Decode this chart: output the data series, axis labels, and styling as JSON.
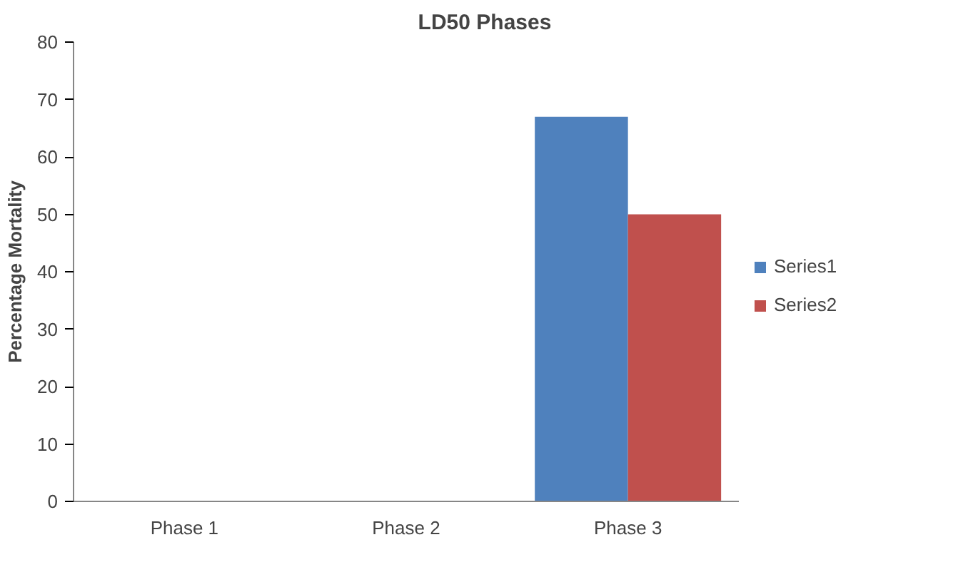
{
  "chart_data": {
    "type": "bar",
    "title": "LD50 Phases",
    "ylabel": "Percentage Mortality",
    "categories": [
      "Phase 1",
      "Phase 2",
      "Phase 3"
    ],
    "series": [
      {
        "name": "Series1",
        "color": "#4f81bd",
        "values": [
          0,
          0,
          67
        ]
      },
      {
        "name": "Series2",
        "color": "#c0504d",
        "values": [
          0,
          0,
          50
        ]
      }
    ],
    "ylim": [
      0,
      80
    ],
    "yticks": [
      0,
      10,
      20,
      30,
      40,
      50,
      60,
      70,
      80
    ],
    "grid": false,
    "legend": "right"
  }
}
